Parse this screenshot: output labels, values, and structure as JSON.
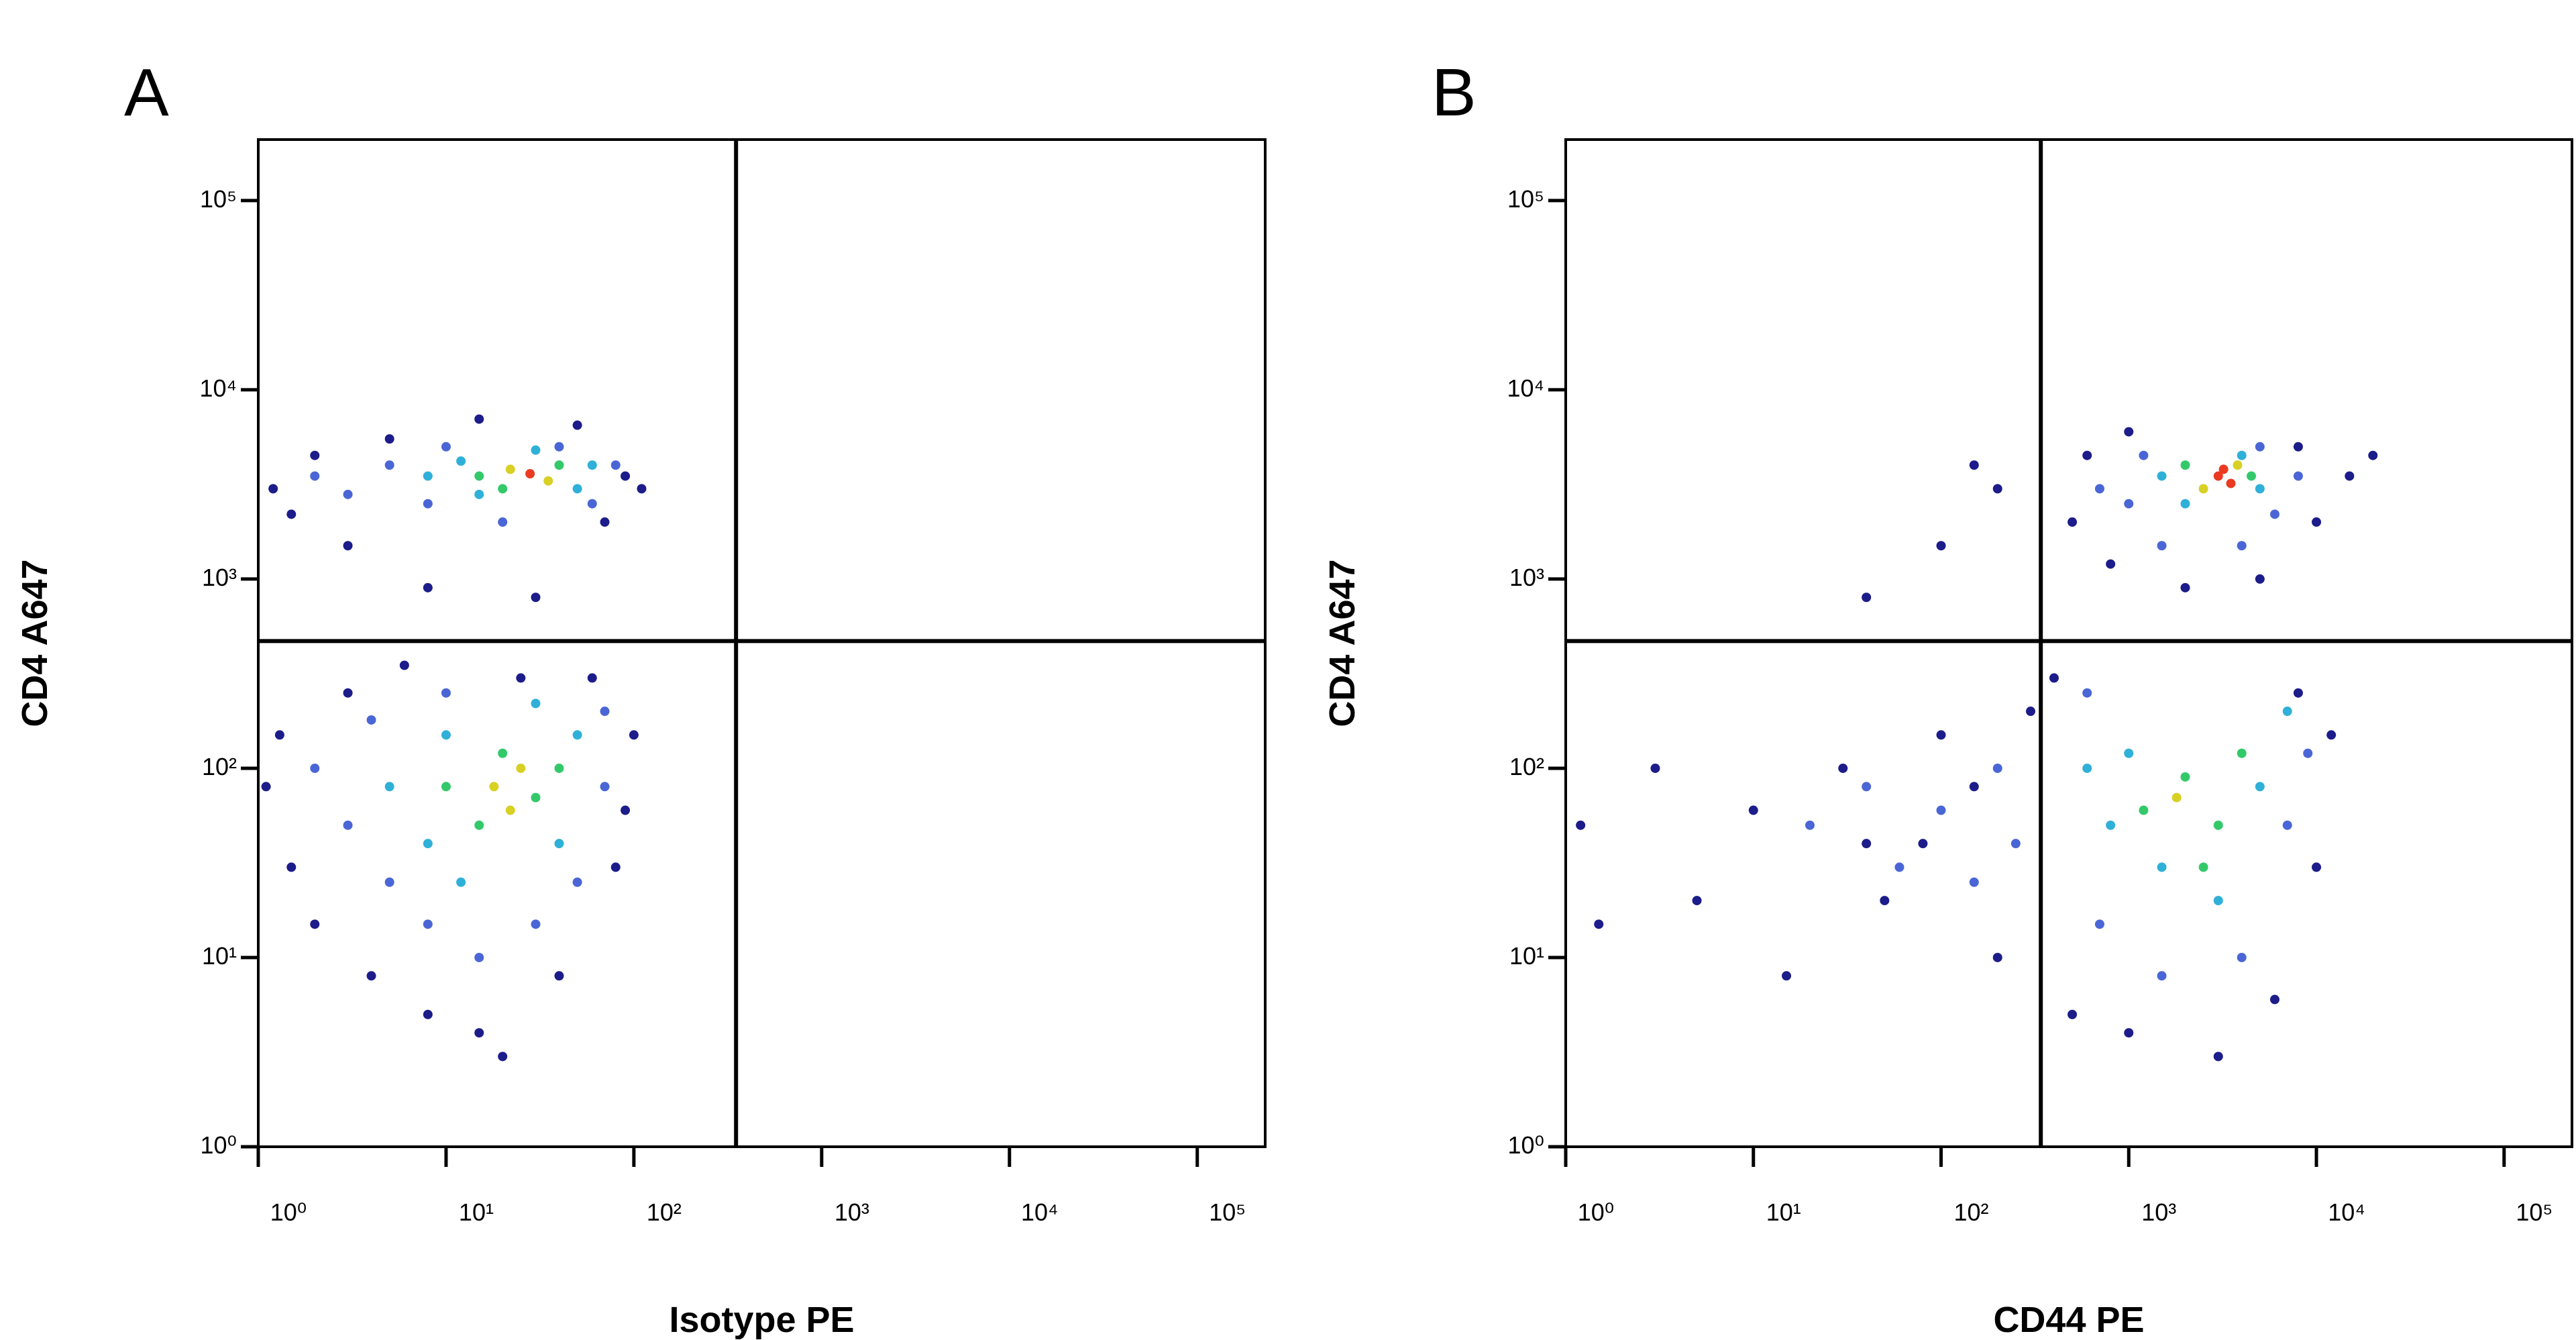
{
  "chart_data": [
    {
      "type": "scatter",
      "label": "A",
      "xlabel": "Isotype PE",
      "ylabel": "CD4 A647",
      "xscale": "log",
      "yscale": "log",
      "xlim": [
        1,
        230000
      ],
      "ylim": [
        1,
        210000
      ],
      "xticks": [
        {
          "value": 1,
          "label": "10⁰"
        },
        {
          "value": 10,
          "label": "10¹"
        },
        {
          "value": 100,
          "label": "10²"
        },
        {
          "value": 1000,
          "label": "10³"
        },
        {
          "value": 10000,
          "label": "10⁴"
        },
        {
          "value": 100000,
          "label": "10⁵"
        }
      ],
      "yticks": [
        {
          "value": 1,
          "label": "10⁰"
        },
        {
          "value": 10,
          "label": "10¹"
        },
        {
          "value": 100,
          "label": "10²"
        },
        {
          "value": 1000,
          "label": "10³"
        },
        {
          "value": 10000,
          "label": "10⁴"
        },
        {
          "value": 100000,
          "label": "10⁵"
        }
      ],
      "gate_x": 350,
      "gate_y": 470,
      "series": [
        {
          "color": "#1c1c8a",
          "x": [
            1.2,
            1.5,
            2,
            3,
            5,
            70,
            90,
            110,
            8,
            30,
            50,
            15,
            1.1,
            1.3,
            1.5,
            2,
            3,
            4,
            8,
            15,
            20,
            40,
            80,
            100,
            90,
            60,
            6,
            25
          ],
          "y": [
            3000,
            2200,
            4500,
            1500,
            5500,
            2000,
            3500,
            3000,
            900,
            800,
            6500,
            7000,
            80,
            150,
            30,
            15,
            250,
            8,
            5,
            4,
            3,
            8,
            30,
            150,
            60,
            300,
            350,
            300
          ]
        },
        {
          "color": "#4a66d6",
          "x": [
            2,
            3,
            5,
            8,
            10,
            40,
            60,
            80,
            20,
            2,
            3,
            4,
            5,
            8,
            10,
            30,
            50,
            70,
            70,
            15
          ],
          "y": [
            3500,
            2800,
            4000,
            2500,
            5000,
            5000,
            2500,
            4000,
            2000,
            100,
            50,
            180,
            25,
            15,
            250,
            15,
            25,
            80,
            200,
            10
          ]
        },
        {
          "color": "#2fb0d8",
          "x": [
            8,
            12,
            15,
            50,
            60,
            30,
            5,
            8,
            10,
            12,
            40,
            50,
            30
          ],
          "y": [
            3500,
            4200,
            2800,
            3000,
            4000,
            4800,
            80,
            40,
            150,
            25,
            40,
            150,
            220
          ]
        },
        {
          "color": "#33c96a",
          "x": [
            15,
            20,
            40,
            10,
            15,
            20,
            30,
            40
          ],
          "y": [
            3500,
            3000,
            4000,
            80,
            50,
            120,
            70,
            100
          ]
        },
        {
          "color": "#d8d025",
          "x": [
            22,
            35,
            18,
            25,
            22
          ],
          "y": [
            3800,
            3300,
            80,
            100,
            60
          ]
        },
        {
          "color": "#ea3a22",
          "x": [
            28
          ],
          "y": [
            3600
          ]
        }
      ]
    },
    {
      "type": "scatter",
      "label": "B",
      "xlabel": "CD44 PE",
      "ylabel": "CD4 A647",
      "xscale": "log",
      "yscale": "log",
      "xlim": [
        1,
        230000
      ],
      "ylim": [
        1,
        210000
      ],
      "xticks": [
        {
          "value": 1,
          "label": "10⁰"
        },
        {
          "value": 10,
          "label": "10¹"
        },
        {
          "value": 100,
          "label": "10²"
        },
        {
          "value": 1000,
          "label": "10³"
        },
        {
          "value": 10000,
          "label": "10⁴"
        },
        {
          "value": 100000,
          "label": "10⁵"
        }
      ],
      "yticks": [
        {
          "value": 1,
          "label": "10⁰"
        },
        {
          "value": 10,
          "label": "10¹"
        },
        {
          "value": 100,
          "label": "10²"
        },
        {
          "value": 1000,
          "label": "10³"
        },
        {
          "value": 10000,
          "label": "10⁴"
        },
        {
          "value": 100000,
          "label": "10⁵"
        }
      ],
      "gate_x": 340,
      "gate_y": 470,
      "series": [
        {
          "color": "#1c1c8a",
          "x": [
            500,
            600,
            800,
            1000,
            8000,
            15000,
            20000,
            10000,
            2000,
            5000,
            150,
            100,
            200,
            40,
            1.2,
            1.5,
            3,
            5,
            10,
            15,
            30,
            50,
            80,
            100,
            200,
            300,
            500,
            1000,
            3000,
            6000,
            10000,
            12000,
            8000,
            400,
            150,
            40
          ],
          "y": [
            2000,
            4500,
            1200,
            6000,
            5000,
            3500,
            4500,
            2000,
            900,
            1000,
            4000,
            1500,
            3000,
            800,
            50,
            15,
            100,
            20,
            60,
            8,
            100,
            20,
            40,
            150,
            10,
            200,
            5,
            4,
            3,
            6,
            30,
            150,
            250,
            300,
            80,
            40
          ]
        },
        {
          "color": "#4a66d6",
          "x": [
            700,
            1000,
            1500,
            4000,
            6000,
            8000,
            1200,
            5000,
            20,
            40,
            60,
            100,
            150,
            200,
            250,
            700,
            1500,
            4000,
            7000,
            9000,
            600
          ],
          "y": [
            3000,
            2500,
            1500,
            1500,
            2200,
            3500,
            4500,
            5000,
            50,
            80,
            30,
            60,
            25,
            100,
            40,
            15,
            8,
            10,
            50,
            120,
            250
          ]
        },
        {
          "color": "#2fb0d8",
          "x": [
            1500,
            2000,
            5000,
            4000,
            800,
            1000,
            1500,
            3000,
            5000,
            7000,
            600
          ],
          "y": [
            3500,
            2500,
            3000,
            4500,
            50,
            120,
            30,
            20,
            80,
            200,
            100
          ]
        },
        {
          "color": "#33c96a",
          "x": [
            2000,
            4500,
            1200,
            2000,
            3000,
            4000,
            2500
          ],
          "y": [
            4000,
            3500,
            60,
            90,
            50,
            120,
            30
          ]
        },
        {
          "color": "#d8d025",
          "x": [
            2500,
            3800,
            1800
          ],
          "y": [
            3000,
            4000,
            70
          ]
        },
        {
          "color": "#ea3a22",
          "x": [
            3000,
            3500,
            3200
          ],
          "y": [
            3500,
            3200,
            3800
          ]
        }
      ]
    }
  ]
}
